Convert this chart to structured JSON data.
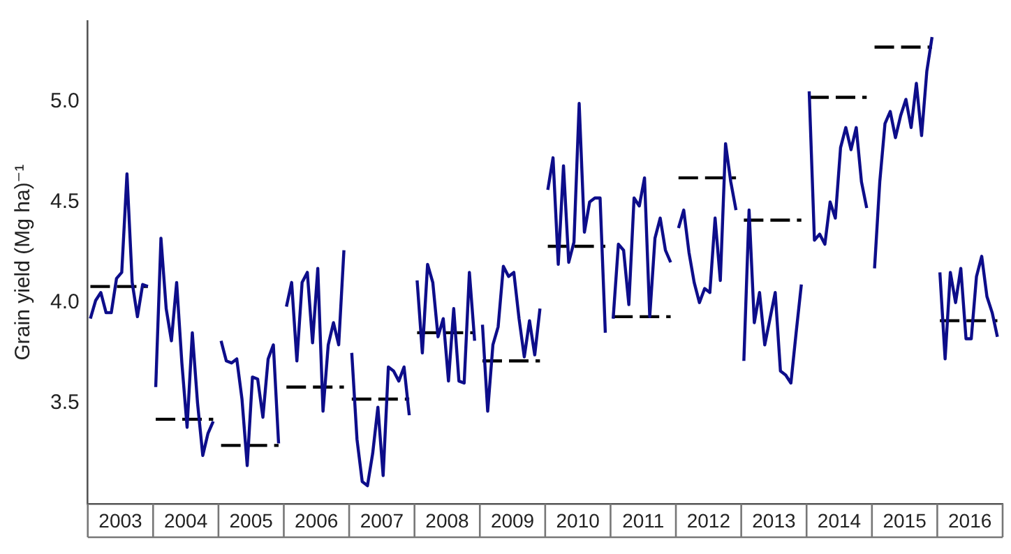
{
  "chart_data": {
    "type": "line",
    "ylabel": "Grain yield (Mg ha)⁻¹",
    "marker": "none",
    "xlim": [
      2003,
      2017
    ],
    "xticks": [
      {
        "value": 2003.5,
        "label": "2003"
      },
      {
        "value": 2004.5,
        "label": "2004"
      },
      {
        "value": 2005.5,
        "label": "2005"
      },
      {
        "value": 2006.5,
        "label": "2006"
      },
      {
        "value": 2007.5,
        "label": "2007"
      },
      {
        "value": 2008.5,
        "label": "2008"
      },
      {
        "value": 2009.5,
        "label": "2009"
      },
      {
        "value": 2010.5,
        "label": "2010"
      },
      {
        "value": 2011.5,
        "label": "2011"
      },
      {
        "value": 2012.5,
        "label": "2012"
      },
      {
        "value": 2013.5,
        "label": "2013"
      },
      {
        "value": 2014.5,
        "label": "2014"
      },
      {
        "value": 2015.5,
        "label": "2015"
      },
      {
        "value": 2016.5,
        "label": "2016"
      }
    ],
    "ylim": [
      3.0,
      5.4
    ],
    "yticks": [
      {
        "value": 3.5,
        "label": "3.5"
      },
      {
        "value": 4,
        "label": "4.0"
      },
      {
        "value": 4.5,
        "label": "4.5"
      },
      {
        "value": 5,
        "label": "5.0"
      }
    ],
    "series": [
      {
        "color": "#0d0d8a",
        "x": [
          2003.04,
          2003.12,
          2003.2,
          2003.28,
          2003.36,
          2003.44,
          2003.52,
          2003.6,
          2003.68,
          2003.76,
          2003.84,
          2003.92
        ],
        "values": [
          3.92,
          4.01,
          4.05,
          3.95,
          3.95,
          4.12,
          4.15,
          4.64,
          4.1,
          3.93,
          4.09,
          4.08
        ]
      },
      {
        "color": "#0d0d8a",
        "x": [
          2004.04,
          2004.12,
          2004.2,
          2004.28,
          2004.36,
          2004.44,
          2004.52,
          2004.6,
          2004.68,
          2004.76,
          2004.84,
          2004.92
        ],
        "values": [
          3.58,
          4.32,
          3.97,
          3.81,
          4.1,
          3.7,
          3.38,
          3.85,
          3.5,
          3.24,
          3.35,
          3.41
        ]
      },
      {
        "color": "#0d0d8a",
        "x": [
          2005.04,
          2005.12,
          2005.2,
          2005.28,
          2005.36,
          2005.44,
          2005.52,
          2005.6,
          2005.68,
          2005.76,
          2005.84,
          2005.92
        ],
        "values": [
          3.81,
          3.71,
          3.7,
          3.72,
          3.52,
          3.19,
          3.63,
          3.62,
          3.43,
          3.72,
          3.79,
          3.3
        ]
      },
      {
        "color": "#0d0d8a",
        "x": [
          2006.04,
          2006.12,
          2006.2,
          2006.28,
          2006.36,
          2006.44,
          2006.52,
          2006.6,
          2006.68,
          2006.76,
          2006.84,
          2006.92
        ],
        "values": [
          3.98,
          4.1,
          3.71,
          4.1,
          4.15,
          3.8,
          4.17,
          3.46,
          3.79,
          3.9,
          3.79,
          4.26
        ]
      },
      {
        "color": "#0d0d8a",
        "x": [
          2007.04,
          2007.12,
          2007.2,
          2007.28,
          2007.36,
          2007.44,
          2007.52,
          2007.6,
          2007.68,
          2007.76,
          2007.84,
          2007.92
        ],
        "values": [
          3.75,
          3.32,
          3.11,
          3.09,
          3.25,
          3.48,
          3.14,
          3.68,
          3.66,
          3.61,
          3.68,
          3.44
        ]
      },
      {
        "color": "#0d0d8a",
        "x": [
          2008.04,
          2008.12,
          2008.2,
          2008.28,
          2008.36,
          2008.44,
          2008.52,
          2008.6,
          2008.68,
          2008.76,
          2008.84,
          2008.92
        ],
        "values": [
          4.11,
          3.75,
          4.19,
          4.1,
          3.83,
          3.92,
          3.61,
          3.97,
          3.61,
          3.6,
          4.15,
          3.81
        ]
      },
      {
        "color": "#0d0d8a",
        "x": [
          2009.04,
          2009.12,
          2009.2,
          2009.28,
          2009.36,
          2009.44,
          2009.52,
          2009.6,
          2009.68,
          2009.76,
          2009.84,
          2009.92
        ],
        "values": [
          3.89,
          3.46,
          3.79,
          3.88,
          4.18,
          4.13,
          4.15,
          3.92,
          3.73,
          3.91,
          3.74,
          3.97
        ]
      },
      {
        "color": "#0d0d8a",
        "x": [
          2010.04,
          2010.12,
          2010.2,
          2010.28,
          2010.36,
          2010.44,
          2010.52,
          2010.6,
          2010.68,
          2010.76,
          2010.84,
          2010.92
        ],
        "values": [
          4.56,
          4.72,
          4.19,
          4.68,
          4.2,
          4.3,
          4.99,
          4.35,
          4.5,
          4.52,
          4.52,
          3.85
        ]
      },
      {
        "color": "#0d0d8a",
        "x": [
          2011.04,
          2011.12,
          2011.2,
          2011.28,
          2011.36,
          2011.44,
          2011.52,
          2011.6,
          2011.68,
          2011.76,
          2011.84,
          2011.92
        ],
        "values": [
          3.92,
          4.29,
          4.26,
          3.99,
          4.52,
          4.48,
          4.62,
          3.93,
          4.32,
          4.42,
          4.26,
          4.2
        ]
      },
      {
        "color": "#0d0d8a",
        "x": [
          2012.04,
          2012.12,
          2012.2,
          2012.28,
          2012.36,
          2012.44,
          2012.52,
          2012.6,
          2012.68,
          2012.76,
          2012.84,
          2012.92
        ],
        "values": [
          4.37,
          4.46,
          4.25,
          4.1,
          4.0,
          4.07,
          4.05,
          4.42,
          4.11,
          4.79,
          4.6,
          4.46
        ]
      },
      {
        "color": "#0d0d8a",
        "x": [
          2013.04,
          2013.12,
          2013.2,
          2013.28,
          2013.36,
          2013.44,
          2013.52,
          2013.6,
          2013.68,
          2013.76,
          2013.84,
          2013.92
        ],
        "values": [
          3.71,
          4.46,
          3.9,
          4.05,
          3.79,
          3.92,
          4.05,
          3.66,
          3.64,
          3.6,
          3.85,
          4.09
        ]
      },
      {
        "color": "#0d0d8a",
        "x": [
          2014.04,
          2014.12,
          2014.2,
          2014.28,
          2014.36,
          2014.44,
          2014.52,
          2014.6,
          2014.68,
          2014.76,
          2014.84,
          2014.92
        ],
        "values": [
          5.05,
          4.31,
          4.34,
          4.29,
          4.5,
          4.42,
          4.77,
          4.87,
          4.76,
          4.87,
          4.6,
          4.47
        ]
      },
      {
        "color": "#0d0d8a",
        "x": [
          2015.04,
          2015.12,
          2015.2,
          2015.28,
          2015.36,
          2015.44,
          2015.52,
          2015.6,
          2015.68,
          2015.76,
          2015.84,
          2015.92
        ],
        "values": [
          4.17,
          4.6,
          4.89,
          4.95,
          4.82,
          4.93,
          5.01,
          4.87,
          5.09,
          4.83,
          5.15,
          5.32
        ]
      },
      {
        "color": "#0d0d8a",
        "x": [
          2016.04,
          2016.12,
          2016.2,
          2016.28,
          2016.36,
          2016.44,
          2016.52,
          2016.6,
          2016.68,
          2016.76,
          2016.84,
          2016.92
        ],
        "values": [
          4.15,
          3.72,
          4.15,
          4.0,
          4.17,
          3.82,
          3.82,
          4.13,
          4.23,
          4.03,
          3.95,
          3.83
        ]
      },
      {
        "color": "#000000",
        "line_style": "dashed",
        "x": [
          2003.04,
          2003.92,
          2003.96,
          2004.04,
          2004.92,
          2004.96,
          2005.04,
          2005.92,
          2005.96,
          2006.04,
          2006.92,
          2006.96,
          2007.04,
          2007.92,
          2007.96,
          2008.04,
          2008.92,
          2008.96,
          2009.04,
          2009.92,
          2009.96,
          2010.04,
          2010.92,
          2010.96,
          2011.04,
          2011.92,
          2011.96,
          2012.04,
          2012.92,
          2012.96,
          2013.04,
          2013.92,
          2013.96,
          2014.04,
          2014.92,
          2014.96,
          2015.04,
          2015.92,
          2015.96,
          2016.04,
          2016.92
        ],
        "values": [
          4.08,
          4.08,
          null,
          3.42,
          3.42,
          null,
          3.29,
          3.29,
          null,
          3.58,
          3.58,
          null,
          3.52,
          3.52,
          null,
          3.85,
          3.85,
          null,
          3.71,
          3.71,
          null,
          4.28,
          4.28,
          null,
          3.93,
          3.93,
          null,
          4.62,
          4.62,
          null,
          4.41,
          4.41,
          null,
          5.02,
          5.02,
          null,
          5.27,
          5.27,
          null,
          3.91,
          3.91
        ]
      }
    ]
  }
}
